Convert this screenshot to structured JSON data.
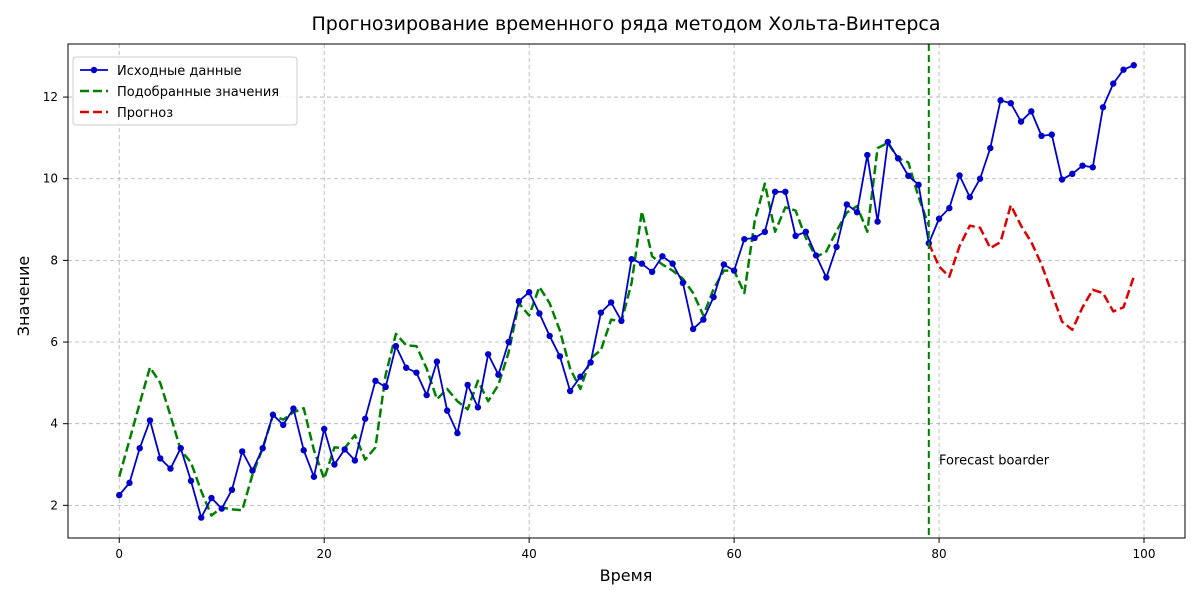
{
  "chart_data": {
    "type": "line",
    "title": "Прогнозирование временного ряда методом Хольта-Винтерса",
    "xlabel": "Время",
    "ylabel": "Значение",
    "xlim": [
      -5,
      104
    ],
    "ylim": [
      1.2,
      13.3
    ],
    "xticks": [
      0,
      20,
      40,
      60,
      80,
      100
    ],
    "yticks": [
      2,
      4,
      6,
      8,
      10,
      12
    ],
    "grid": true,
    "legend_position": "top-left",
    "series": [
      {
        "name": "Исходные данные",
        "style": "solid-markers",
        "color": "#0000cc",
        "x_start": 0,
        "values": [
          2.25,
          2.55,
          3.4,
          4.08,
          3.15,
          2.9,
          3.4,
          2.6,
          1.7,
          2.18,
          1.92,
          2.38,
          3.32,
          2.85,
          3.4,
          4.22,
          3.97,
          4.37,
          3.35,
          2.7,
          3.87,
          3.0,
          3.37,
          3.1,
          4.12,
          5.05,
          4.9,
          5.9,
          5.37,
          5.25,
          4.7,
          5.52,
          4.32,
          3.77,
          4.95,
          4.4,
          5.7,
          5.2,
          6.0,
          7.0,
          7.22,
          6.7,
          6.15,
          5.65,
          4.8,
          5.15,
          5.5,
          6.72,
          6.97,
          6.52,
          8.03,
          7.92,
          7.72,
          8.1,
          7.92,
          7.45,
          6.32,
          6.55,
          7.1,
          7.9,
          7.75,
          8.52,
          8.55,
          8.7,
          9.68,
          9.68,
          8.6,
          8.7,
          8.12,
          7.58,
          8.33,
          9.37,
          9.18,
          10.58,
          8.95,
          10.9,
          10.5,
          10.07,
          9.85,
          8.42,
          9.02,
          9.28,
          10.08,
          9.55,
          10.0,
          10.75,
          11.92,
          11.85,
          11.4,
          11.65,
          11.05,
          11.08,
          9.98,
          10.12,
          10.32,
          10.28,
          11.75,
          12.33,
          12.67,
          12.78
        ]
      },
      {
        "name": "Подобранные значения",
        "style": "dashed",
        "color": "#008000",
        "x_start": 0,
        "values": [
          2.7,
          3.6,
          4.5,
          5.38,
          5.0,
          4.2,
          3.35,
          3.05,
          2.35,
          1.75,
          1.95,
          1.9,
          1.88,
          2.75,
          3.4,
          4.2,
          4.1,
          4.28,
          4.38,
          3.35,
          2.65,
          3.42,
          3.4,
          3.72,
          3.12,
          3.42,
          5.2,
          6.2,
          5.92,
          5.9,
          5.35,
          4.6,
          4.85,
          4.55,
          4.35,
          5.05,
          4.55,
          4.95,
          5.75,
          6.95,
          6.65,
          7.35,
          6.95,
          6.28,
          5.35,
          4.85,
          5.6,
          5.8,
          6.55,
          6.5,
          7.45,
          9.2,
          8.1,
          7.9,
          7.75,
          7.55,
          7.2,
          6.65,
          7.3,
          7.75,
          7.75,
          7.2,
          8.95,
          9.88,
          8.7,
          9.3,
          9.22,
          8.55,
          8.08,
          8.22,
          8.72,
          9.17,
          9.33,
          8.7,
          10.75,
          10.88,
          10.5,
          10.4,
          9.55,
          8.85
        ]
      },
      {
        "name": "Прогноз",
        "style": "dashed",
        "color": "#dd0000",
        "x_start": 79,
        "values": [
          8.42,
          7.85,
          7.6,
          8.35,
          8.85,
          8.8,
          8.3,
          8.45,
          9.35,
          8.85,
          8.45,
          7.9,
          7.2,
          6.5,
          6.3,
          6.85,
          7.28,
          7.2,
          6.75,
          6.85,
          7.6
        ]
      }
    ],
    "annotations": [
      {
        "type": "vline",
        "x": 79,
        "color": "#008000",
        "style": "dashed"
      },
      {
        "type": "text",
        "x": 80,
        "y": 3.1,
        "text": "Forecast boarder"
      }
    ]
  }
}
